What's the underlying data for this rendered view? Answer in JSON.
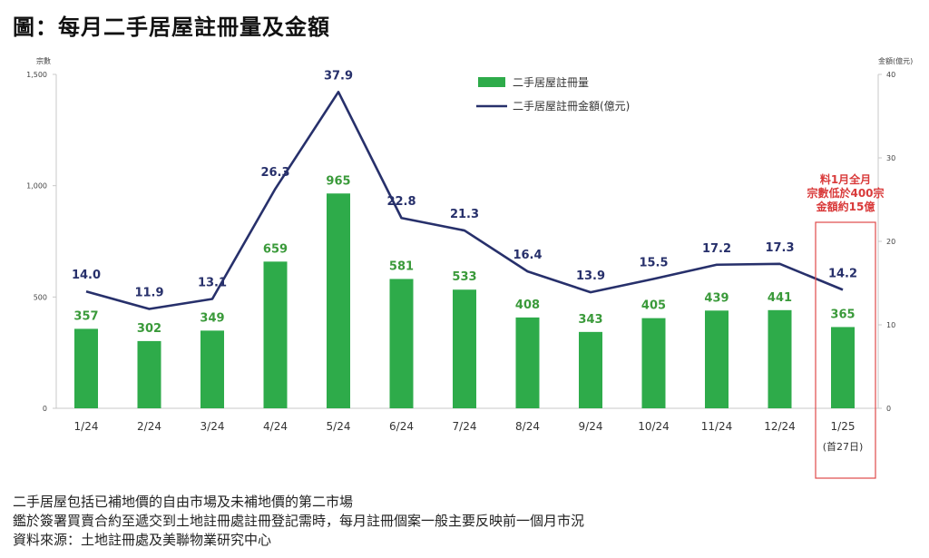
{
  "title": "圖：每月二手居屋註冊量及金額",
  "chart_data": {
    "type": "bar",
    "categories": [
      "1/24",
      "2/24",
      "3/24",
      "4/24",
      "5/24",
      "6/24",
      "7/24",
      "8/24",
      "9/24",
      "10/24",
      "11/24",
      "12/24",
      "1/25"
    ],
    "category_note": "(首27日)",
    "series": [
      {
        "name": "二手居屋註冊量",
        "type": "bar",
        "axis": "left",
        "color": "#2eab4a",
        "values": [
          357,
          302,
          349,
          659,
          965,
          581,
          533,
          408,
          343,
          405,
          439,
          441,
          365
        ]
      },
      {
        "name": "二手居屋註冊金額(億元)",
        "type": "line",
        "axis": "right",
        "color": "#27306b",
        "values": [
          14.0,
          11.9,
          13.1,
          26.3,
          37.9,
          22.8,
          21.3,
          16.4,
          13.9,
          15.5,
          17.2,
          17.3,
          14.2
        ]
      }
    ],
    "left_axis": {
      "label": "宗數",
      "ylim": [
        0,
        1500
      ],
      "ticks": [
        "0",
        "500",
        "1,000",
        "1,500"
      ]
    },
    "right_axis": {
      "label": "金額(億元)",
      "ylim": [
        0,
        40
      ],
      "ticks": [
        "0",
        "10",
        "20",
        "30",
        "40"
      ]
    },
    "legend": "top-center",
    "annotation": {
      "lines": [
        "料1月全月",
        "宗數低於400宗",
        "金額約15億"
      ],
      "color": "#d93a3a"
    }
  },
  "footnotes": [
    "二手居屋包括已補地價的自由市場及未補地價的第二市場",
    "鑑於簽署買賣合約至遞交到土地註冊處註冊登記需時，每月註冊個案一般主要反映前一個月市況",
    "資料來源：土地註冊處及美聯物業研究中心"
  ]
}
